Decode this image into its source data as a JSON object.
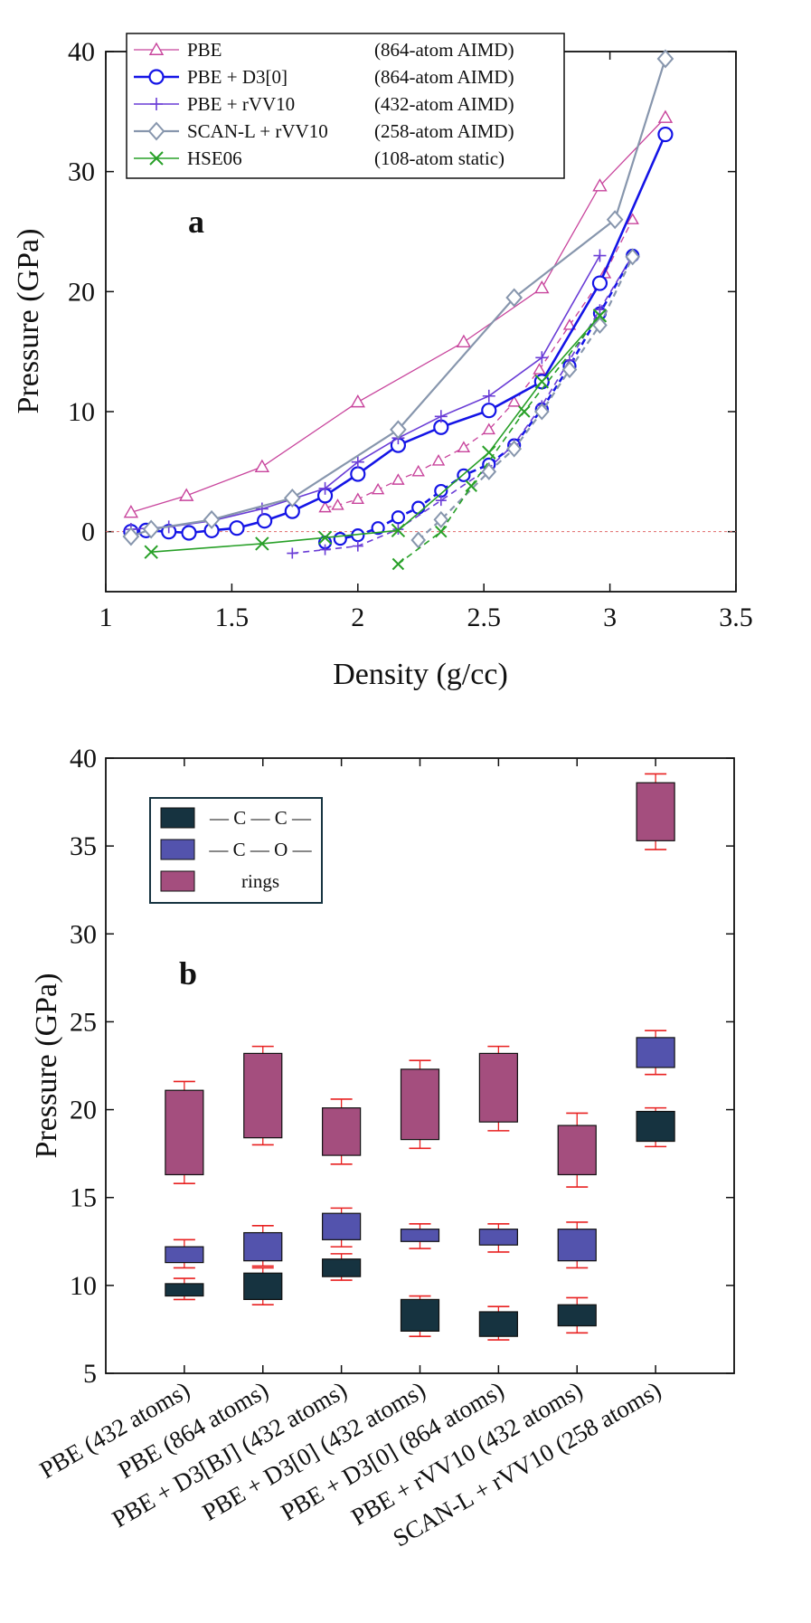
{
  "chart_data": [
    {
      "type": "line",
      "panel_label": "a",
      "xlabel": "Density (g/cc)",
      "ylabel": "Pressure (GPa)",
      "xlim": [
        1,
        3.5
      ],
      "ylim": [
        -5,
        40
      ],
      "xticks": [
        "1",
        "1.5",
        "2",
        "2.5",
        "3",
        "3.5"
      ],
      "yticks": [
        "0",
        "10",
        "20",
        "30",
        "40"
      ],
      "reference_line_y": 0,
      "legend_position": "top-left",
      "series": [
        {
          "name": "PBE",
          "note": "(864-atom AIMD)",
          "color": "#c8449c",
          "marker": "triangle",
          "x": [
            1.1,
            1.32,
            1.62,
            2.0,
            2.42,
            2.73,
            2.96,
            3.22
          ],
          "y": [
            1.6,
            3.0,
            5.4,
            10.8,
            15.8,
            20.3,
            28.8,
            34.5
          ],
          "dashed_x": [
            1.87,
            1.92,
            2.0,
            2.08,
            2.16,
            2.24,
            2.32,
            2.42,
            2.52,
            2.62,
            2.72,
            2.84,
            2.98,
            3.09
          ],
          "dashed_y": [
            2.0,
            2.2,
            2.7,
            3.5,
            4.3,
            5.0,
            5.9,
            7.0,
            8.5,
            10.8,
            13.5,
            17.2,
            21.5,
            26.0
          ]
        },
        {
          "name": "PBE + D3[0]",
          "note": "(864-atom AIMD)",
          "color": "#1414e6",
          "marker": "circle",
          "x": [
            1.1,
            1.16,
            1.25,
            1.33,
            1.42,
            1.52,
            1.63,
            1.74,
            1.87,
            2.0,
            2.16,
            2.33,
            2.52,
            2.73,
            2.96,
            3.22
          ],
          "y": [
            0.0,
            0.1,
            0.0,
            -0.1,
            0.1,
            0.3,
            0.9,
            1.7,
            3.0,
            4.8,
            7.2,
            8.7,
            10.1,
            12.5,
            20.7,
            33.1
          ],
          "dashed_x": [
            1.87,
            1.93,
            2.0,
            2.08,
            2.16,
            2.24,
            2.33,
            2.42,
            2.52,
            2.62,
            2.73,
            2.84,
            2.96,
            3.09
          ],
          "dashed_y": [
            -0.9,
            -0.6,
            -0.3,
            0.3,
            1.2,
            2.0,
            3.4,
            4.7,
            5.6,
            7.2,
            10.2,
            13.8,
            18.2,
            23.0
          ]
        },
        {
          "name": "PBE + rVV10",
          "note": "(432-atom AIMD)",
          "color": "#6a3dd6",
          "marker": "plus",
          "x": [
            1.1,
            1.25,
            1.42,
            1.62,
            1.87,
            2.0,
            2.16,
            2.33,
            2.52,
            2.73,
            2.96
          ],
          "y": [
            0.2,
            0.4,
            0.9,
            1.9,
            3.6,
            5.8,
            7.8,
            9.6,
            11.3,
            14.5,
            23.0
          ],
          "dashed_x": [
            1.74,
            1.87,
            2.0,
            2.16,
            2.33,
            2.52,
            2.62,
            2.73,
            2.84,
            2.96,
            3.09
          ],
          "dashed_y": [
            -1.8,
            -1.5,
            -1.2,
            0.2,
            2.6,
            5.3,
            7.3,
            10.5,
            14.3,
            18.5,
            23.0
          ]
        },
        {
          "name": "SCAN-L + rVV10",
          "note": "(258-atom AIMD)",
          "color": "#8796ad",
          "marker": "diamond",
          "x": [
            1.1,
            1.18,
            1.42,
            1.74,
            2.16,
            2.62,
            3.02,
            3.22
          ],
          "y": [
            -0.4,
            0.2,
            1.0,
            2.8,
            8.5,
            19.5,
            26.0,
            39.4
          ],
          "dashed_x": [
            2.24,
            2.33,
            2.52,
            2.62,
            2.73,
            2.84,
            2.96,
            3.09
          ],
          "dashed_y": [
            -0.7,
            1.0,
            5.0,
            6.9,
            10.0,
            13.5,
            17.2,
            22.9
          ]
        },
        {
          "name": "HSE06",
          "note": "(108-atom static)",
          "color": "#28a028",
          "marker": "x",
          "x": [
            1.18,
            1.62,
            1.87,
            2.16,
            2.52,
            2.73,
            2.96
          ],
          "y": [
            -1.7,
            -1.0,
            -0.5,
            0.1,
            6.6,
            12.5,
            18.0
          ],
          "dashed_x": [
            2.16,
            2.33,
            2.45,
            2.66,
            2.96
          ],
          "dashed_y": [
            -2.7,
            0.0,
            3.8,
            10.0,
            18.0
          ]
        }
      ]
    },
    {
      "type": "box",
      "panel_label": "b",
      "ylabel": "Pressure (GPa)",
      "ylim": [
        5,
        40
      ],
      "yticks": [
        "5",
        "10",
        "15",
        "20",
        "25",
        "30",
        "35",
        "40"
      ],
      "legend_position": "top-left",
      "legend": [
        {
          "label": "— C — C —",
          "color": "#163340"
        },
        {
          "label": "— C — O —",
          "color": "#5353ad"
        },
        {
          "label": "rings",
          "color": "#a44e7e"
        }
      ],
      "categories": [
        "PBE (432 atoms)",
        "PBE (864 atoms)",
        "PBE + D3[BJ] (432 atoms)",
        "PBE + D3[0] (432 atoms)",
        "PBE + D3[0] (864 atoms)",
        "PBE + rVV10 (432 atoms)",
        "SCAN-L + rVV10 (258 atoms)"
      ],
      "series": [
        {
          "name": "— C — C —",
          "color": "#163340",
          "boxes": [
            {
              "low": 9.2,
              "q1": 9.4,
              "q3": 10.1,
              "high": 10.4
            },
            {
              "low": 8.9,
              "q1": 9.2,
              "q3": 10.7,
              "high": 11.0
            },
            {
              "low": 10.3,
              "q1": 10.5,
              "q3": 11.5,
              "high": 11.8
            },
            {
              "low": 7.1,
              "q1": 7.4,
              "q3": 9.2,
              "high": 9.4
            },
            {
              "low": 6.9,
              "q1": 7.1,
              "q3": 8.5,
              "high": 8.8
            },
            {
              "low": 7.3,
              "q1": 7.7,
              "q3": 8.9,
              "high": 9.3
            },
            {
              "low": 17.9,
              "q1": 18.2,
              "q3": 19.9,
              "high": 20.1
            }
          ]
        },
        {
          "name": "— C — O —",
          "color": "#5353ad",
          "boxes": [
            {
              "low": 11.0,
              "q1": 11.3,
              "q3": 12.2,
              "high": 12.6
            },
            {
              "low": 11.1,
              "q1": 11.4,
              "q3": 13.0,
              "high": 13.4
            },
            {
              "low": 12.2,
              "q1": 12.6,
              "q3": 14.1,
              "high": 14.4
            },
            {
              "low": 12.1,
              "q1": 12.5,
              "q3": 13.2,
              "high": 13.5
            },
            {
              "low": 11.9,
              "q1": 12.3,
              "q3": 13.2,
              "high": 13.5
            },
            {
              "low": 11.0,
              "q1": 11.4,
              "q3": 13.2,
              "high": 13.6
            },
            {
              "low": 22.0,
              "q1": 22.4,
              "q3": 24.1,
              "high": 24.5
            }
          ]
        },
        {
          "name": "rings",
          "color": "#a44e7e",
          "boxes": [
            {
              "low": 15.8,
              "q1": 16.3,
              "q3": 21.1,
              "high": 21.6
            },
            {
              "low": 18.0,
              "q1": 18.4,
              "q3": 23.2,
              "high": 23.6
            },
            {
              "low": 16.9,
              "q1": 17.4,
              "q3": 20.1,
              "high": 20.6
            },
            {
              "low": 17.8,
              "q1": 18.3,
              "q3": 22.3,
              "high": 22.8
            },
            {
              "low": 18.8,
              "q1": 19.3,
              "q3": 23.2,
              "high": 23.6
            },
            {
              "low": 15.6,
              "q1": 16.3,
              "q3": 19.1,
              "high": 19.8
            },
            {
              "low": 34.8,
              "q1": 35.3,
              "q3": 38.6,
              "high": 39.1
            }
          ]
        }
      ]
    }
  ]
}
